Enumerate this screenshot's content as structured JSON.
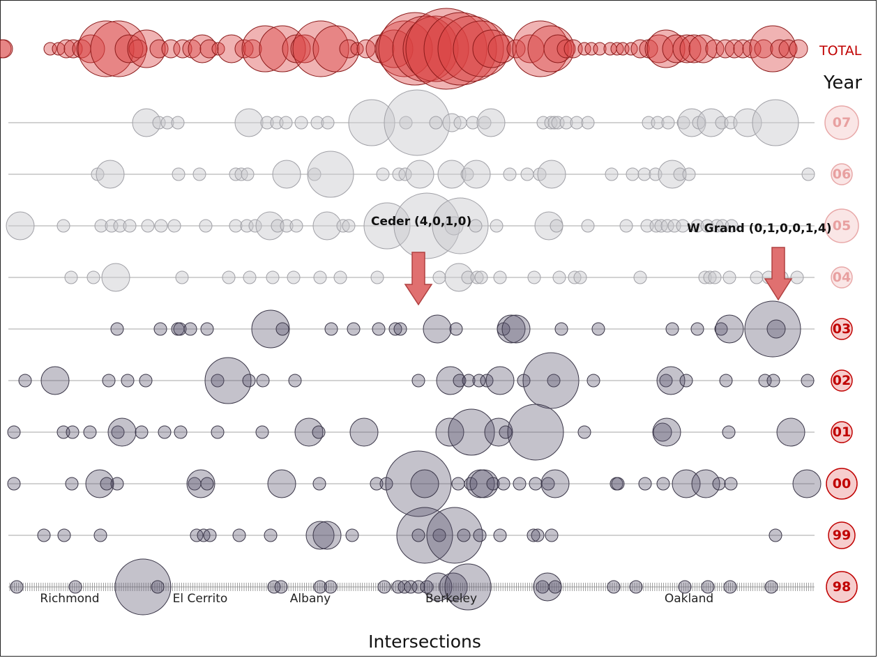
{
  "chart_data": {
    "type": "scatter",
    "title": "",
    "xlabel": "Intersections",
    "ylabel": "Year",
    "total_label": "TOTAL",
    "cities": [
      "Richmond",
      "El Cerrito",
      "Albany",
      "Berkeley",
      "Oakland"
    ],
    "years": [
      "07",
      "06",
      "05",
      "04",
      "03",
      "02",
      "01",
      "00",
      "99",
      "98"
    ],
    "colors": {
      "total": "#d94040",
      "faded": "#c8c8cc",
      "dark": "#55506a",
      "arrow": "#e07070",
      "label_dark": "#c00000",
      "label_faded": "#e8a0a0"
    },
    "annotations": [
      {
        "text": "Ceder (4,0,1,0)"
      },
      {
        "text": "W Grand (0,1,0,0,1,4)"
      }
    ],
    "total": [
      [
        3,
        2
      ],
      [
        5,
        2
      ],
      [
        72,
        1
      ],
      [
        84,
        1
      ],
      [
        95,
        2
      ],
      [
        105,
        2
      ],
      [
        117,
        2
      ],
      [
        130,
        3
      ],
      [
        152,
        6
      ],
      [
        170,
        6
      ],
      [
        185,
        3
      ],
      [
        198,
        2
      ],
      [
        210,
        4
      ],
      [
        228,
        2
      ],
      [
        245,
        2
      ],
      [
        262,
        2
      ],
      [
        275,
        2
      ],
      [
        290,
        3
      ],
      [
        300,
        2
      ],
      [
        313,
        1
      ],
      [
        332,
        3
      ],
      [
        350,
        2
      ],
      [
        362,
        2
      ],
      [
        380,
        5
      ],
      [
        405,
        5
      ],
      [
        425,
        3
      ],
      [
        437,
        3
      ],
      [
        460,
        6
      ],
      [
        482,
        5
      ],
      [
        500,
        2
      ],
      [
        512,
        1
      ],
      [
        525,
        2
      ],
      [
        545,
        3
      ],
      [
        565,
        4
      ],
      [
        580,
        6
      ],
      [
        595,
        8
      ],
      [
        610,
        7
      ],
      [
        625,
        7
      ],
      [
        640,
        9
      ],
      [
        660,
        8
      ],
      [
        675,
        7
      ],
      [
        690,
        6
      ],
      [
        705,
        4
      ],
      [
        720,
        3
      ],
      [
        740,
        2
      ],
      [
        760,
        3
      ],
      [
        775,
        6
      ],
      [
        790,
        5
      ],
      [
        800,
        3
      ],
      [
        812,
        2
      ],
      [
        822,
        2
      ],
      [
        838,
        1
      ],
      [
        848,
        1
      ],
      [
        860,
        1
      ],
      [
        875,
        1
      ],
      [
        885,
        1
      ],
      [
        893,
        1
      ],
      [
        905,
        1
      ],
      [
        918,
        2
      ],
      [
        930,
        2
      ],
      [
        945,
        3
      ],
      [
        955,
        4
      ],
      [
        970,
        3
      ],
      [
        985,
        3
      ],
      [
        995,
        3
      ],
      [
        1008,
        3
      ],
      [
        1025,
        2
      ],
      [
        1040,
        2
      ],
      [
        1053,
        2
      ],
      [
        1065,
        2
      ],
      [
        1078,
        2
      ],
      [
        1095,
        2
      ],
      [
        1108,
        5
      ],
      [
        1118,
        2
      ],
      [
        1130,
        2
      ],
      [
        1145,
        2
      ]
    ],
    "rows": {
      "07": [
        [
          210,
          3
        ],
        [
          228,
          1
        ],
        [
          240,
          1
        ],
        [
          255,
          1
        ],
        [
          357,
          3
        ],
        [
          383,
          1
        ],
        [
          397,
          1
        ],
        [
          410,
          1
        ],
        [
          432,
          1
        ],
        [
          455,
          1
        ],
        [
          470,
          1
        ],
        [
          533,
          5
        ],
        [
          582,
          1
        ],
        [
          598,
          7
        ],
        [
          625,
          1
        ],
        [
          648,
          2
        ],
        [
          660,
          1
        ],
        [
          678,
          1
        ],
        [
          695,
          1
        ],
        [
          704,
          3
        ],
        [
          779,
          1
        ],
        [
          790,
          1
        ],
        [
          795,
          1
        ],
        [
          800,
          1
        ],
        [
          812,
          1
        ],
        [
          827,
          1
        ],
        [
          843,
          1
        ],
        [
          930,
          1
        ],
        [
          943,
          1
        ],
        [
          958,
          1
        ],
        [
          980,
          1
        ],
        [
          992,
          3
        ],
        [
          1002,
          1
        ],
        [
          1020,
          3
        ],
        [
          1035,
          1
        ],
        [
          1048,
          1
        ],
        [
          1072,
          3
        ],
        [
          1112,
          5
        ]
      ],
      "06": [
        [
          140,
          1
        ],
        [
          158,
          3
        ],
        [
          256,
          1
        ],
        [
          286,
          1
        ],
        [
          338,
          1
        ],
        [
          346,
          1
        ],
        [
          355,
          1
        ],
        [
          411,
          3
        ],
        [
          451,
          1
        ],
        [
          474,
          5
        ],
        [
          549,
          1
        ],
        [
          572,
          1
        ],
        [
          581,
          1
        ],
        [
          602,
          3
        ],
        [
          648,
          3
        ],
        [
          670,
          1
        ],
        [
          683,
          3
        ],
        [
          731,
          1
        ],
        [
          756,
          1
        ],
        [
          774,
          1
        ],
        [
          791,
          3
        ],
        [
          877,
          1
        ],
        [
          907,
          1
        ],
        [
          924,
          1
        ],
        [
          940,
          1
        ],
        [
          964,
          3
        ],
        [
          975,
          1
        ],
        [
          988,
          1
        ],
        [
          1159,
          1
        ]
      ],
      "05": [
        [
          29,
          3
        ],
        [
          91,
          1
        ],
        [
          145,
          1
        ],
        [
          160,
          1
        ],
        [
          172,
          1
        ],
        [
          186,
          1
        ],
        [
          212,
          1
        ],
        [
          231,
          1
        ],
        [
          250,
          1
        ],
        [
          295,
          1
        ],
        [
          338,
          1
        ],
        [
          354,
          1
        ],
        [
          366,
          1
        ],
        [
          387,
          3
        ],
        [
          398,
          1
        ],
        [
          411,
          1
        ],
        [
          425,
          1
        ],
        [
          469,
          3
        ],
        [
          492,
          1
        ],
        [
          500,
          1
        ],
        [
          555,
          5
        ],
        [
          612,
          7
        ],
        [
          651,
          2
        ],
        [
          660,
          6
        ],
        [
          682,
          1
        ],
        [
          712,
          1
        ],
        [
          787,
          3
        ],
        [
          798,
          1
        ],
        [
          843,
          1
        ],
        [
          898,
          1
        ],
        [
          928,
          1
        ],
        [
          941,
          1
        ],
        [
          948,
          1
        ],
        [
          957,
          1
        ],
        [
          967,
          1
        ],
        [
          979,
          1
        ],
        [
          1000,
          1
        ],
        [
          1014,
          1
        ],
        [
          1028,
          1
        ],
        [
          1036,
          1
        ],
        [
          1049,
          1
        ]
      ],
      "04": [
        [
          102,
          1
        ],
        [
          134,
          1
        ],
        [
          166,
          3
        ],
        [
          261,
          1
        ],
        [
          328,
          1
        ],
        [
          358,
          1
        ],
        [
          391,
          1
        ],
        [
          421,
          1
        ],
        [
          459,
          1
        ],
        [
          488,
          1
        ],
        [
          541,
          1
        ],
        [
          630,
          1
        ],
        [
          658,
          3
        ],
        [
          671,
          1
        ],
        [
          684,
          1
        ],
        [
          690,
          1
        ],
        [
          717,
          1
        ],
        [
          766,
          1
        ],
        [
          802,
          1
        ],
        [
          824,
          1
        ],
        [
          832,
          1
        ],
        [
          918,
          1
        ],
        [
          1011,
          1
        ],
        [
          1018,
          1
        ],
        [
          1025,
          1
        ],
        [
          1046,
          1
        ],
        [
          1085,
          1
        ],
        [
          1102,
          1
        ],
        [
          1121,
          1
        ],
        [
          1143,
          1
        ]
      ],
      "03": [
        [
          168,
          1
        ],
        [
          230,
          1
        ],
        [
          255,
          1
        ],
        [
          258,
          1
        ],
        [
          273,
          1
        ],
        [
          297,
          1
        ],
        [
          388,
          4
        ],
        [
          405,
          1
        ],
        [
          475,
          1
        ],
        [
          507,
          1
        ],
        [
          543,
          1
        ],
        [
          567,
          1
        ],
        [
          574,
          1
        ],
        [
          627,
          3
        ],
        [
          654,
          1
        ],
        [
          722,
          1
        ],
        [
          733,
          3
        ],
        [
          740,
          3
        ],
        [
          805,
          1
        ],
        [
          858,
          1
        ],
        [
          964,
          1
        ],
        [
          1000,
          1
        ],
        [
          1034,
          1
        ],
        [
          1046,
          3
        ],
        [
          1108,
          6
        ],
        [
          1113,
          2
        ]
      ],
      "02": [
        [
          36,
          1
        ],
        [
          79,
          3
        ],
        [
          156,
          1
        ],
        [
          183,
          1
        ],
        [
          209,
          1
        ],
        [
          312,
          1
        ],
        [
          327,
          5
        ],
        [
          357,
          1
        ],
        [
          377,
          1
        ],
        [
          423,
          1
        ],
        [
          600,
          1
        ],
        [
          646,
          3
        ],
        [
          659,
          1
        ],
        [
          672,
          1
        ],
        [
          687,
          1
        ],
        [
          698,
          1
        ],
        [
          717,
          3
        ],
        [
          751,
          1
        ],
        [
          794,
          1
        ],
        [
          790,
          6
        ],
        [
          851,
          1
        ],
        [
          955,
          1
        ],
        [
          962,
          3
        ],
        [
          984,
          1
        ],
        [
          1041,
          1
        ],
        [
          1097,
          1
        ],
        [
          1109,
          1
        ],
        [
          1158,
          1
        ]
      ],
      "01": [
        [
          20,
          1
        ],
        [
          91,
          1
        ],
        [
          104,
          1
        ],
        [
          129,
          1
        ],
        [
          169,
          1
        ],
        [
          175,
          3
        ],
        [
          203,
          1
        ],
        [
          236,
          1
        ],
        [
          259,
          1
        ],
        [
          312,
          1
        ],
        [
          376,
          1
        ],
        [
          443,
          3
        ],
        [
          457,
          1
        ],
        [
          522,
          3
        ],
        [
          645,
          3
        ],
        [
          676,
          5
        ],
        [
          715,
          3
        ],
        [
          725,
          1
        ],
        [
          768,
          6
        ],
        [
          838,
          1
        ],
        [
          950,
          2
        ],
        [
          956,
          3
        ],
        [
          1045,
          1
        ],
        [
          1134,
          3
        ]
      ],
      "00": [
        [
          20,
          1
        ],
        [
          103,
          1
        ],
        [
          143,
          3
        ],
        [
          153,
          1
        ],
        [
          168,
          1
        ],
        [
          279,
          1
        ],
        [
          288,
          3
        ],
        [
          297,
          1
        ],
        [
          404,
          3
        ],
        [
          458,
          1
        ],
        [
          540,
          1
        ],
        [
          554,
          1
        ],
        [
          600,
          7
        ],
        [
          609,
          3
        ],
        [
          657,
          1
        ],
        [
          675,
          1
        ],
        [
          689,
          3
        ],
        [
          694,
          3
        ],
        [
          707,
          1
        ],
        [
          722,
          1
        ],
        [
          745,
          1
        ],
        [
          768,
          1
        ],
        [
          786,
          1
        ],
        [
          796,
          3
        ],
        [
          884,
          1
        ],
        [
          886,
          1
        ],
        [
          925,
          1
        ],
        [
          951,
          1
        ],
        [
          984,
          3
        ],
        [
          1012,
          3
        ],
        [
          1031,
          1
        ],
        [
          1048,
          1
        ],
        [
          1157,
          3
        ]
      ],
      "99": [
        [
          63,
          1
        ],
        [
          92,
          1
        ],
        [
          144,
          1
        ],
        [
          282,
          1
        ],
        [
          292,
          1
        ],
        [
          301,
          1
        ],
        [
          343,
          1
        ],
        [
          388,
          1
        ],
        [
          459,
          3
        ],
        [
          469,
          3
        ],
        [
          505,
          1
        ],
        [
          609,
          6
        ],
        [
          600,
          1
        ],
        [
          630,
          1
        ],
        [
          652,
          6
        ],
        [
          665,
          1
        ],
        [
          688,
          1
        ],
        [
          717,
          1
        ],
        [
          765,
          1
        ],
        [
          771,
          1
        ],
        [
          791,
          1
        ],
        [
          1112,
          1
        ]
      ],
      "98": [
        [
          24,
          1
        ],
        [
          108,
          1
        ],
        [
          205,
          6
        ],
        [
          226,
          1
        ],
        [
          393,
          1
        ],
        [
          403,
          1
        ],
        [
          459,
          1
        ],
        [
          474,
          1
        ],
        [
          551,
          1
        ],
        [
          571,
          1
        ],
        [
          580,
          1
        ],
        [
          589,
          1
        ],
        [
          600,
          1
        ],
        [
          612,
          1
        ],
        [
          628,
          3
        ],
        [
          650,
          3
        ],
        [
          671,
          5
        ],
        [
          778,
          1
        ],
        [
          785,
          3
        ],
        [
          796,
          1
        ],
        [
          880,
          1
        ],
        [
          912,
          1
        ],
        [
          982,
          1
        ],
        [
          1015,
          1
        ],
        [
          1047,
          1
        ],
        [
          1106,
          1
        ]
      ]
    }
  }
}
